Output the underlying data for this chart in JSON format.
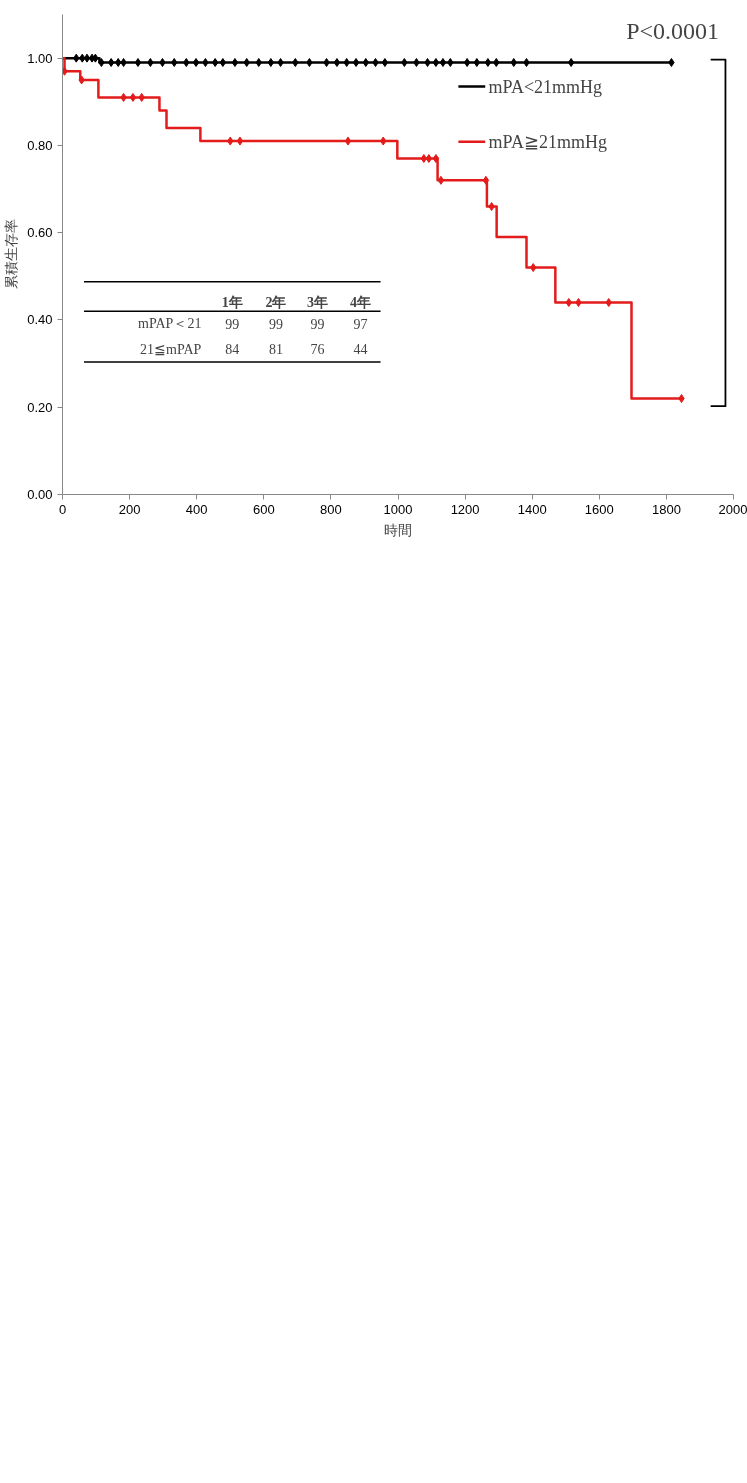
{
  "chart_data": {
    "type": "step",
    "xlabel": "時間",
    "ylabel": "累積生存率",
    "xlim": [
      0,
      2000
    ],
    "xticks": [
      0,
      200,
      400,
      600,
      800,
      1000,
      1200,
      1400,
      1600,
      1800,
      2000
    ],
    "ylim": [
      0,
      1.1
    ],
    "yticks": [
      {
        "value": 0,
        "label": "0.00"
      },
      {
        "value": 0.2,
        "label": "0.20"
      },
      {
        "value": 0.4,
        "label": "0.40"
      },
      {
        "value": 0.6,
        "label": "0.60"
      },
      {
        "value": 0.8,
        "label": "0.80"
      },
      {
        "value": 1.0,
        "label": "1.00"
      }
    ],
    "grid": false,
    "legend": "top right",
    "line_style": "solid",
    "annotations": [
      "P<0.0001",
      "1年",
      "2年",
      "3年",
      "4年",
      "mPAP＜21",
      "99",
      "99",
      "99",
      "97",
      "21≦mPAP",
      "84",
      "81",
      "76",
      "44"
    ],
    "series": [
      {
        "name": "mPA<21mmHg",
        "color": "#000000",
        "x": [
          0,
          110,
          1815
        ],
        "values": [
          1.0,
          0.99,
          0.99
        ]
      },
      {
        "name": "mPA≧21mmHg",
        "color": "#e31b1b",
        "x": [
          0,
          6,
          53,
          107,
          289,
          310,
          411,
          998,
          1118,
          1265,
          1294,
          1383,
          1469,
          1696,
          1845
        ],
        "values": [
          1.0,
          0.97,
          0.95,
          0.91,
          0.88,
          0.84,
          0.81,
          0.77,
          0.72,
          0.66,
          0.59,
          0.52,
          0.44,
          0.22,
          0.22
        ]
      },
      {
        "type": "scatter",
        "marker": "diamond",
        "color": "#000000",
        "x": [
          41,
          59,
          73,
          88,
          98,
          116,
          145,
          166,
          182,
          225,
          262,
          298,
          333,
          369,
          398,
          426,
          455,
          478,
          514,
          549,
          585,
          621,
          650,
          694,
          736,
          787,
          818,
          847,
          875,
          904,
          933,
          961,
          1019,
          1055,
          1088,
          1113,
          1134,
          1156,
          1206,
          1235,
          1268,
          1293,
          1345,
          1383,
          1516,
          1815
        ],
        "values": [
          1.0,
          1.0,
          1.0,
          1.0,
          1.0,
          0.99,
          0.99,
          0.99,
          0.99,
          0.99,
          0.99,
          0.99,
          0.99,
          0.99,
          0.99,
          0.99,
          0.99,
          0.99,
          0.99,
          0.99,
          0.99,
          0.99,
          0.99,
          0.99,
          0.99,
          0.99,
          0.99,
          0.99,
          0.99,
          0.99,
          0.99,
          0.99,
          0.99,
          0.99,
          0.99,
          0.99,
          0.99,
          0.99,
          0.99,
          0.99,
          0.99,
          0.99,
          0.99,
          0.99,
          0.99,
          0.99
        ]
      },
      {
        "type": "scatter",
        "marker": "diamond",
        "color": "#e31b1b",
        "x": [
          6,
          57,
          182,
          210,
          236,
          500,
          529,
          851,
          956,
          1077,
          1092,
          1113,
          1128,
          1262,
          1279,
          1403,
          1509,
          1538,
          1628,
          1845
        ],
        "values": [
          0.97,
          0.95,
          0.91,
          0.91,
          0.91,
          0.81,
          0.81,
          0.81,
          0.81,
          0.77,
          0.77,
          0.77,
          0.72,
          0.72,
          0.66,
          0.52,
          0.44,
          0.44,
          0.44,
          0.22
        ]
      }
    ]
  }
}
